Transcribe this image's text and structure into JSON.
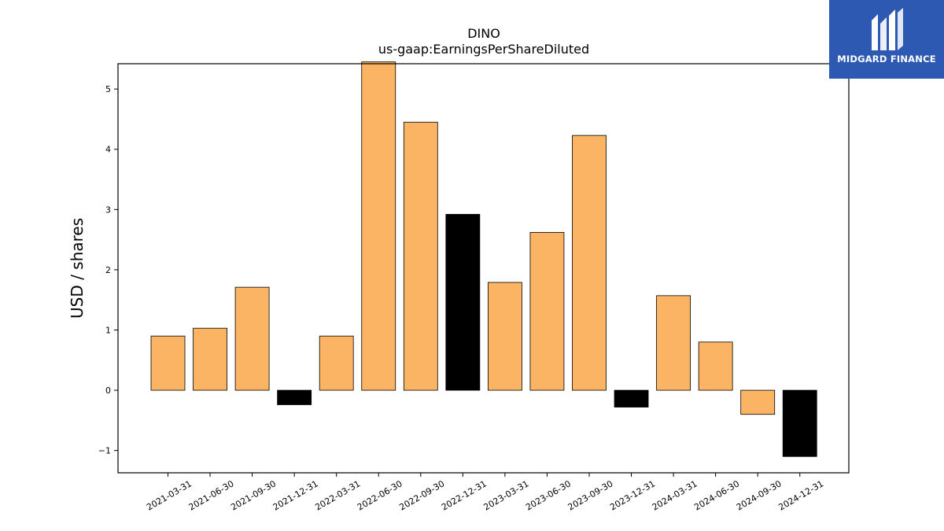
{
  "chart_data": {
    "type": "bar",
    "title": "DINO",
    "subtitle": "us-gaap:EarningsPerShareDiluted",
    "xlabel": "",
    "ylabel": "USD / shares",
    "categories": [
      "2021-03-31",
      "2021-06-30",
      "2021-09-30",
      "2021-12-31",
      "2022-03-31",
      "2022-06-30",
      "2022-09-30",
      "2022-12-31",
      "2023-03-31",
      "2023-06-30",
      "2023-09-30",
      "2023-12-31",
      "2024-03-31",
      "2024-06-30",
      "2024-09-30",
      "2024-12-31"
    ],
    "values": [
      0.9,
      1.03,
      1.71,
      -0.24,
      0.9,
      5.45,
      4.45,
      2.92,
      1.79,
      2.62,
      4.23,
      -0.28,
      1.57,
      0.8,
      -0.4,
      -1.1
    ],
    "highlight": [
      false,
      false,
      false,
      true,
      false,
      false,
      false,
      true,
      false,
      false,
      false,
      true,
      false,
      false,
      false,
      true
    ],
    "colors": {
      "normal": "#fbb463",
      "highlight": "#000000",
      "edge": "#000000"
    },
    "ylim": [
      -1.37,
      5.42
    ],
    "yticks": [
      -1,
      0,
      1,
      2,
      3,
      4,
      5
    ],
    "ytick_labels": [
      "−1",
      "0",
      "1",
      "2",
      "3",
      "4",
      "5"
    ],
    "grid": false,
    "legend": "none"
  },
  "logo": {
    "text": "MIDGARD FINANCE",
    "background": "#2d59b3"
  }
}
